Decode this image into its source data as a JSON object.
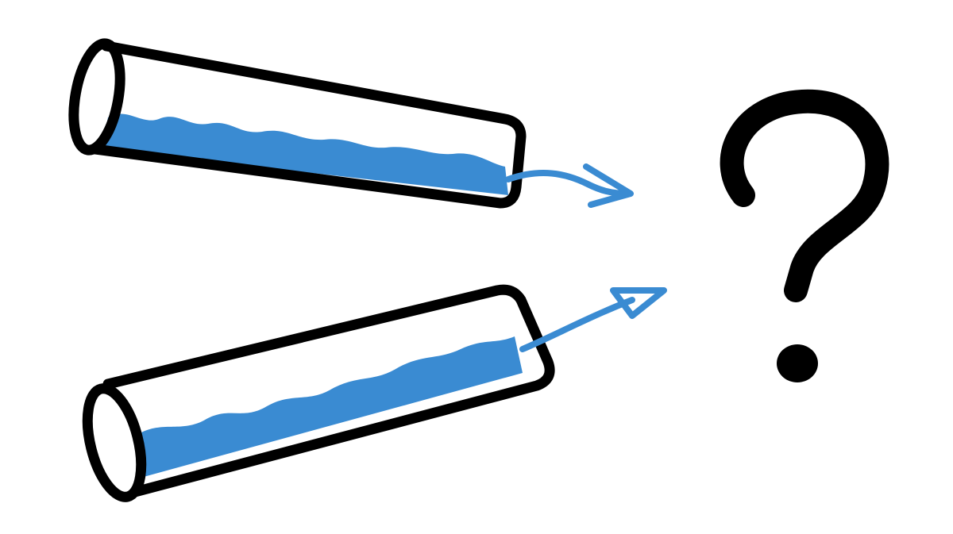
{
  "colors": {
    "background": "#ffffff",
    "outline": "#000000",
    "liquid": "#3a8bd2",
    "arrow": "#3a8bd2"
  },
  "illustration": {
    "tubes": [
      {
        "name": "upper-tube",
        "liquid_level": 0.5,
        "flow_direction": "right"
      },
      {
        "name": "lower-tube",
        "liquid_level": 0.6,
        "flow_direction": "up-right"
      }
    ],
    "question_mark_icon": "question-mark-icon"
  }
}
